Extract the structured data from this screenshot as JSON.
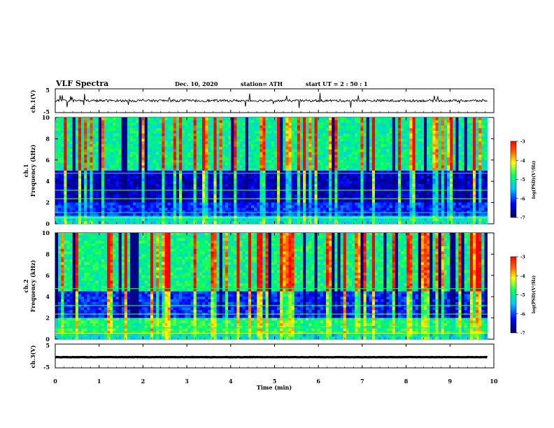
{
  "header": {
    "title": "VLF Spectra",
    "date": "Dec. 10, 2020",
    "station": "station= ATH",
    "start": "start  UT =   2  : 50 : 1"
  },
  "chart_data": [
    {
      "type": "line",
      "name": "ch1-waveform",
      "ylabel": "ch.1(V)",
      "ylim": [
        -5,
        5
      ],
      "yticks": [
        "5",
        "-5"
      ],
      "xlim": [
        0,
        10
      ],
      "baseline": 0,
      "description_values": [
        [
          0.0,
          0.4
        ],
        [
          0.5,
          -0.3
        ],
        [
          1.0,
          0.6
        ],
        [
          1.5,
          -0.5
        ],
        [
          2.0,
          0.2
        ],
        [
          2.5,
          -0.4
        ],
        [
          3.0,
          0.5
        ],
        [
          3.5,
          -0.2
        ],
        [
          4.0,
          0.3
        ],
        [
          4.5,
          -0.6
        ],
        [
          5.0,
          0.1
        ],
        [
          5.5,
          -0.3
        ],
        [
          6.0,
          0.4
        ],
        [
          6.5,
          -0.2
        ],
        [
          7.0,
          0.3
        ],
        [
          7.5,
          -0.5
        ],
        [
          8.0,
          0.2
        ],
        [
          8.5,
          -0.1
        ],
        [
          9.0,
          0.3
        ],
        [
          9.5,
          -0.4
        ],
        [
          9.8,
          0.2
        ]
      ]
    },
    {
      "type": "heatmap",
      "name": "ch1-spectrogram",
      "ylabel": "ch.1\nFrequency (kHz)",
      "yticks": [
        "0",
        "2",
        "4",
        "6",
        "8",
        "10"
      ],
      "ylim": [
        0,
        10
      ],
      "xlim": [
        0,
        10
      ],
      "colorbar": {
        "label": "log(PSD)(V²/Hz)",
        "ticks": [
          "-3",
          "-4",
          "-5",
          "-6",
          "-7"
        ],
        "range": [
          -7,
          -3
        ]
      }
    },
    {
      "type": "heatmap",
      "name": "ch2-spectrogram",
      "ylabel": "ch.2\nFrequency (kHz)",
      "yticks": [
        "0",
        "2",
        "4",
        "6",
        "8",
        "10"
      ],
      "ylim": [
        0,
        10
      ],
      "xlim": [
        0,
        10
      ],
      "colorbar": {
        "label": "log(PSD)(V²/Hz)",
        "ticks": [
          "-3",
          "-4",
          "-5",
          "-6",
          "-7"
        ],
        "range": [
          -7,
          -3
        ]
      }
    },
    {
      "type": "line",
      "name": "ch3-waveform",
      "ylabel": "ch.3(V)",
      "ylim": [
        -5,
        5
      ],
      "yticks": [
        "5",
        "-5"
      ],
      "xlim": [
        0,
        10
      ],
      "baseline": -0.5
    }
  ],
  "xaxis": {
    "label": "Time  (min)",
    "ticks": [
      "0",
      "1",
      "2",
      "3",
      "4",
      "5",
      "6",
      "7",
      "8",
      "9",
      "10"
    ]
  },
  "colors": {
    "scale": [
      "#00008b",
      "#0000ff",
      "#00bfff",
      "#00ff80",
      "#ffff00",
      "#ff8000",
      "#ff0000"
    ]
  }
}
